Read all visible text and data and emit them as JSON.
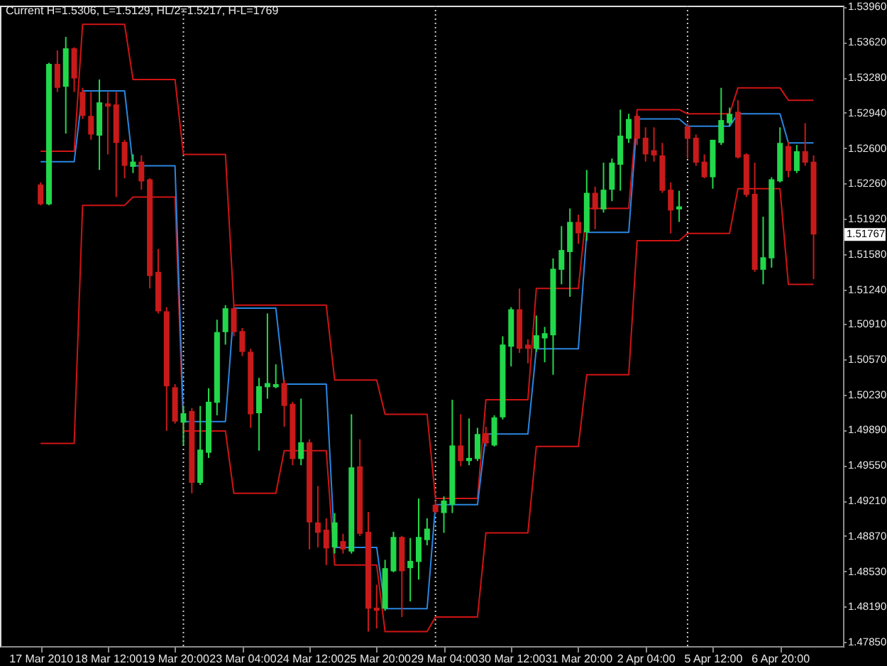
{
  "chart_data": {
    "type": "candlestick",
    "annotations": [
      "Current H=1.5306, L=1.5129, HL/2=1.5217, H-L=1769",
      "1.51767"
    ],
    "grid": "x",
    "categories": [
      "17 Mar 2010",
      null,
      null,
      null,
      null,
      null,
      null,
      null,
      "18 Mar 12:00",
      null,
      null,
      null,
      null,
      null,
      null,
      null,
      "19 Mar 20:00",
      null,
      null,
      null,
      null,
      null,
      null,
      null,
      "23 Mar 04:00",
      null,
      null,
      null,
      null,
      null,
      null,
      null,
      "24 Mar 12:00",
      null,
      null,
      null,
      null,
      null,
      null,
      null,
      "25 Mar 20:00",
      null,
      null,
      null,
      null,
      null,
      null,
      null,
      "29 Mar 04:00",
      null,
      null,
      null,
      null,
      null,
      null,
      null,
      "30 Mar 12:00",
      null,
      null,
      null,
      null,
      null,
      null,
      null,
      "31 Mar 20:00",
      null,
      null,
      null,
      null,
      null,
      null,
      null,
      "2 Apr 04:00",
      null,
      null,
      null,
      null,
      null,
      null,
      null,
      "5 Apr 12:00",
      null,
      null,
      null,
      null,
      null,
      null,
      null,
      "6 Apr 20:00",
      null,
      null,
      null,
      null
    ],
    "ylim": [
      1.4781,
      1.5397
    ],
    "yticks": [
      {
        "value": 1.5396,
        "label": "1.53960"
      },
      {
        "value": 1.5362,
        "label": "1.53620"
      },
      {
        "value": 1.5328,
        "label": "1.53280"
      },
      {
        "value": 1.5294,
        "label": "1.52940"
      },
      {
        "value": 1.526,
        "label": "1.52600"
      },
      {
        "value": 1.5226,
        "label": "1.52260"
      },
      {
        "value": 1.5192,
        "label": "1.51920"
      },
      {
        "value": 1.5158,
        "label": "1.51580"
      },
      {
        "value": 1.5124,
        "label": "1.51240"
      },
      {
        "value": 1.5091,
        "label": "1.50910"
      },
      {
        "value": 1.5057,
        "label": "1.50570"
      },
      {
        "value": 1.5023,
        "label": "1.50230"
      },
      {
        "value": 1.4989,
        "label": "1.49890"
      },
      {
        "value": 1.4955,
        "label": "1.49550"
      },
      {
        "value": 1.4921,
        "label": "1.49210"
      },
      {
        "value": 1.4887,
        "label": "1.48870"
      },
      {
        "value": 1.4853,
        "label": "1.48530"
      },
      {
        "value": 1.4819,
        "label": "1.48190"
      },
      {
        "value": 1.4785,
        "label": "1.47850"
      }
    ],
    "ohlc": [
      [
        1.5225,
        1.5227,
        1.5205,
        1.5206
      ],
      [
        1.5206,
        1.5342,
        1.5205,
        1.5341
      ],
      [
        1.5341,
        1.5354,
        1.5314,
        1.5318
      ],
      [
        1.5319,
        1.5367,
        1.5274,
        1.5356
      ],
      [
        1.5356,
        1.5357,
        1.5314,
        1.5327
      ],
      [
        1.5314,
        1.5318,
        1.5288,
        1.5291
      ],
      [
        1.5291,
        1.5314,
        1.5268,
        1.5273
      ],
      [
        1.5272,
        1.5326,
        1.5239,
        1.5304
      ],
      [
        1.5303,
        1.5314,
        1.5254,
        1.53
      ],
      [
        1.5302,
        1.5314,
        1.5213,
        1.5265
      ],
      [
        1.5266,
        1.5268,
        1.5231,
        1.5243
      ],
      [
        1.5242,
        1.5254,
        1.5236,
        1.5247
      ],
      [
        1.5247,
        1.5253,
        1.522,
        1.5228
      ],
      [
        1.523,
        1.5231,
        1.5125,
        1.5137
      ],
      [
        1.5141,
        1.5163,
        1.5101,
        1.5103
      ],
      [
        1.5103,
        1.5107,
        1.4988,
        1.5031
      ],
      [
        1.503,
        1.5033,
        1.4995,
        1.4997
      ],
      [
        1.4996,
        1.5012,
        1.4974,
        1.5005
      ],
      [
        1.5007,
        1.501,
        1.4928,
        1.4938
      ],
      [
        1.4938,
        1.5012,
        1.4936,
        1.497
      ],
      [
        1.4967,
        1.5029,
        1.4962,
        1.5016
      ],
      [
        1.5015,
        1.5095,
        1.5003,
        1.5083
      ],
      [
        1.5083,
        1.5109,
        1.5071,
        1.5106
      ],
      [
        1.5106,
        1.5109,
        1.5079,
        1.5083
      ],
      [
        1.5084,
        1.5087,
        1.506,
        1.5064
      ],
      [
        1.5064,
        1.5067,
        1.4991,
        1.5004
      ],
      [
        1.5005,
        1.5039,
        1.4969,
        1.5031
      ],
      [
        1.503,
        1.5101,
        1.5019,
        1.5034
      ],
      [
        1.503,
        1.5052,
        1.5029,
        1.5033
      ],
      [
        1.5034,
        1.5037,
        1.4992,
        1.5012
      ],
      [
        1.5014,
        1.5016,
        1.4955,
        1.4961
      ],
      [
        1.4961,
        1.5019,
        1.4955,
        1.4977
      ],
      [
        1.4977,
        1.498,
        1.4874,
        1.49
      ],
      [
        1.49,
        1.4935,
        1.4876,
        1.489
      ],
      [
        1.4893,
        1.4904,
        1.4859,
        1.4875
      ],
      [
        1.4876,
        1.4909,
        1.487,
        1.49
      ],
      [
        1.4882,
        1.4889,
        1.487,
        1.4874
      ],
      [
        1.4872,
        1.5004,
        1.487,
        1.4953
      ],
      [
        1.4954,
        1.498,
        1.4887,
        1.4889
      ],
      [
        1.4891,
        1.491,
        1.4795,
        1.4817
      ],
      [
        1.4818,
        1.484,
        1.4798,
        1.4815
      ],
      [
        1.4817,
        1.4864,
        1.4815,
        1.4856
      ],
      [
        1.4853,
        1.4891,
        1.4852,
        1.4886
      ],
      [
        1.4886,
        1.4887,
        1.4809,
        1.4853
      ],
      [
        1.4856,
        1.4885,
        1.4824,
        1.4863
      ],
      [
        1.4862,
        1.4923,
        1.4845,
        1.4886
      ],
      [
        1.4883,
        1.4904,
        1.4878,
        1.4894
      ],
      [
        1.4917,
        1.4921,
        1.4908,
        1.491
      ],
      [
        1.4909,
        1.4925,
        1.489,
        1.4921
      ],
      [
        1.4917,
        1.5018,
        1.4909,
        1.4974
      ],
      [
        1.4974,
        1.5004,
        1.4954,
        1.4959
      ],
      [
        1.4959,
        1.5,
        1.4955,
        1.4962
      ],
      [
        1.4961,
        1.4991,
        1.4959,
        1.4985
      ],
      [
        1.4986,
        1.4992,
        1.4973,
        1.4976
      ],
      [
        1.4974,
        1.5003,
        1.4973,
        1.5001
      ],
      [
        1.5001,
        1.5079,
        1.4999,
        1.5071
      ],
      [
        1.5069,
        1.5107,
        1.505,
        1.5105
      ],
      [
        1.5105,
        1.5125,
        1.5063,
        1.5067
      ],
      [
        1.5071,
        1.5076,
        1.5053,
        1.5067
      ],
      [
        1.5067,
        1.5099,
        1.5064,
        1.508
      ],
      [
        1.5077,
        1.5088,
        1.5054,
        1.5082
      ],
      [
        1.508,
        1.5154,
        1.5042,
        1.5144
      ],
      [
        1.5143,
        1.5185,
        1.5129,
        1.5162
      ],
      [
        1.516,
        1.5202,
        1.5117,
        1.5189
      ],
      [
        1.5189,
        1.5196,
        1.5168,
        1.5178
      ],
      [
        1.5179,
        1.5239,
        1.5171,
        1.5217
      ],
      [
        1.5217,
        1.5223,
        1.5182,
        1.5201
      ],
      [
        1.5201,
        1.5246,
        1.5198,
        1.522
      ],
      [
        1.522,
        1.525,
        1.5209,
        1.5246
      ],
      [
        1.5244,
        1.5297,
        1.5219,
        1.5272
      ],
      [
        1.5269,
        1.5293,
        1.5265,
        1.5288
      ],
      [
        1.5291,
        1.5293,
        1.5263,
        1.5269
      ],
      [
        1.527,
        1.528,
        1.5247,
        1.5254
      ],
      [
        1.5258,
        1.528,
        1.5247,
        1.5253
      ],
      [
        1.5253,
        1.5265,
        1.5217,
        1.5219
      ],
      [
        1.522,
        1.5227,
        1.5178,
        1.52
      ],
      [
        1.5201,
        1.5219,
        1.5189,
        1.5204
      ],
      [
        1.5281,
        1.5284,
        1.525,
        1.5269
      ],
      [
        1.527,
        1.5273,
        1.5243,
        1.5246
      ],
      [
        1.5247,
        1.5254,
        1.5231,
        1.5232
      ],
      [
        1.5232,
        1.5268,
        1.5221,
        1.5268
      ],
      [
        1.5265,
        1.5318,
        1.5263,
        1.5287
      ],
      [
        1.5284,
        1.5299,
        1.5281,
        1.5293
      ],
      [
        1.5295,
        1.5306,
        1.525,
        1.5251
      ],
      [
        1.5254,
        1.5255,
        1.5213,
        1.5215
      ],
      [
        1.5216,
        1.5246,
        1.5141,
        1.5143
      ],
      [
        1.5143,
        1.5194,
        1.5129,
        1.5155
      ],
      [
        1.5154,
        1.5232,
        1.5145,
        1.523
      ],
      [
        1.5228,
        1.528,
        1.5227,
        1.5265
      ],
      [
        1.5262,
        1.5266,
        1.5232,
        1.5238
      ],
      [
        1.5238,
        1.5263,
        1.5236,
        1.5257
      ],
      [
        1.5257,
        1.5284,
        1.5243,
        1.5246
      ],
      [
        1.5247,
        1.5253,
        1.5134,
        1.5177
      ]
    ],
    "colors": [
      "#c81a1a",
      "#22d84a",
      "#c81a1a",
      "#22d84a",
      "#c81a1a",
      "#c81a1a",
      "#c81a1a",
      "#22d84a",
      "#c81a1a",
      "#c81a1a",
      "#c81a1a",
      "#22d84a",
      "#c81a1a",
      "#c81a1a",
      "#c81a1a",
      "#c81a1a",
      "#c81a1a",
      "#22d84a",
      "#c81a1a",
      "#22d84a",
      "#22d84a",
      "#22d84a",
      "#22d84a",
      "#c81a1a",
      "#c81a1a",
      "#c81a1a",
      "#22d84a",
      "#22d84a",
      "#22d84a",
      "#c81a1a",
      "#c81a1a",
      "#22d84a",
      "#c81a1a",
      "#c81a1a",
      "#c81a1a",
      "#22d84a",
      "#c81a1a",
      "#22d84a",
      "#c81a1a",
      "#c81a1a",
      "#c81a1a",
      "#22d84a",
      "#22d84a",
      "#c81a1a",
      "#22d84a",
      "#22d84a",
      "#22d84a",
      "#c81a1a",
      "#22d84a",
      "#22d84a",
      "#c81a1a",
      "#22d84a",
      "#22d84a",
      "#c81a1a",
      "#22d84a",
      "#22d84a",
      "#22d84a",
      "#c81a1a",
      "#c81a1a",
      "#22d84a",
      "#22d84a",
      "#22d84a",
      "#22d84a",
      "#22d84a",
      "#c81a1a",
      "#22d84a",
      "#c81a1a",
      "#22d84a",
      "#22d84a",
      "#22d84a",
      "#22d84a",
      "#c81a1a",
      "#c81a1a",
      "#c81a1a",
      "#c81a1a",
      "#c81a1a",
      "#22d84a",
      "#c81a1a",
      "#c81a1a",
      "#c81a1a",
      "#22d84a",
      "#22d84a",
      "#22d84a",
      "#c81a1a",
      "#c81a1a",
      "#c81a1a",
      "#22d84a",
      "#22d84a",
      "#22d84a",
      "#c81a1a",
      "#22d84a",
      "#c81a1a",
      "#c81a1a"
    ],
    "series": [
      {
        "type": "line",
        "color": "#d01414",
        "values": [
          1.5257,
          1.5257,
          1.5257,
          1.5257,
          1.5257,
          1.5379,
          1.5379,
          1.5379,
          1.5379,
          1.5379,
          1.5379,
          1.5326,
          1.5326,
          1.5326,
          1.5326,
          1.5326,
          1.5326,
          1.5254,
          1.5254,
          1.5254,
          1.5254,
          1.5254,
          1.5254,
          1.5109,
          1.5109,
          1.5109,
          1.5109,
          1.5109,
          1.5109,
          1.5109,
          1.5109,
          1.5109,
          1.5109,
          1.5109,
          1.5109,
          1.5037,
          1.5037,
          1.5037,
          1.5037,
          1.5037,
          1.5037,
          1.5004,
          1.5004,
          1.5004,
          1.5004,
          1.5004,
          1.5004,
          1.4923,
          1.4923,
          1.4923,
          1.4923,
          1.4923,
          1.4923,
          1.5018,
          1.5018,
          1.5018,
          1.5018,
          1.5018,
          1.5018,
          1.5125,
          1.5125,
          1.5125,
          1.5125,
          1.5125,
          1.5125,
          1.5202,
          1.5202,
          1.5202,
          1.5202,
          1.5202,
          1.5202,
          1.5297,
          1.5297,
          1.5297,
          1.5297,
          1.5297,
          1.5297,
          1.5293,
          1.5293,
          1.5293,
          1.5293,
          1.5293,
          1.5293,
          1.5318,
          1.5318,
          1.5318,
          1.5318,
          1.5318,
          1.5318,
          1.5306,
          1.5306,
          1.5306,
          1.5306
        ]
      },
      {
        "type": "line",
        "color": "#d01414",
        "values": [
          1.4976,
          1.4976,
          1.4976,
          1.4976,
          1.4976,
          1.5205,
          1.5205,
          1.5205,
          1.5205,
          1.5205,
          1.5205,
          1.5213,
          1.5213,
          1.5213,
          1.5213,
          1.5213,
          1.5213,
          1.4988,
          1.4988,
          1.4988,
          1.4988,
          1.4988,
          1.4988,
          1.4928,
          1.4928,
          1.4928,
          1.4928,
          1.4928,
          1.4928,
          1.4969,
          1.4969,
          1.4969,
          1.4969,
          1.4969,
          1.4969,
          1.4859,
          1.4859,
          1.4859,
          1.4859,
          1.4859,
          1.4859,
          1.4795,
          1.4795,
          1.4795,
          1.4795,
          1.4795,
          1.4795,
          1.4809,
          1.4809,
          1.4809,
          1.4809,
          1.4809,
          1.4809,
          1.489,
          1.489,
          1.489,
          1.489,
          1.489,
          1.489,
          1.4973,
          1.4973,
          1.4973,
          1.4973,
          1.4973,
          1.4973,
          1.5042,
          1.5042,
          1.5042,
          1.5042,
          1.5042,
          1.5042,
          1.5171,
          1.5171,
          1.5171,
          1.5171,
          1.5171,
          1.5171,
          1.5178,
          1.5178,
          1.5178,
          1.5178,
          1.5178,
          1.5178,
          1.5221,
          1.5221,
          1.5221,
          1.5221,
          1.5221,
          1.5221,
          1.5129,
          1.5129,
          1.5129,
          1.5129
        ]
      },
      {
        "type": "line",
        "color": "#2a86e0",
        "values": [
          1.5247,
          1.5247,
          1.5247,
          1.5247,
          1.5247,
          1.5315,
          1.5315,
          1.5315,
          1.5315,
          1.5315,
          1.5315,
          1.5243,
          1.5243,
          1.5243,
          1.5243,
          1.5243,
          1.5243,
          1.4997,
          1.4997,
          1.4997,
          1.4997,
          1.4997,
          1.4997,
          1.5106,
          1.5106,
          1.5106,
          1.5106,
          1.5106,
          1.5106,
          1.5033,
          1.5033,
          1.5033,
          1.5033,
          1.5033,
          1.5033,
          1.4876,
          1.4876,
          1.4876,
          1.4876,
          1.4876,
          1.4876,
          1.4817,
          1.4817,
          1.4817,
          1.4817,
          1.4817,
          1.4817,
          1.4917,
          1.4917,
          1.4917,
          1.4917,
          1.4917,
          1.4917,
          1.4985,
          1.4985,
          1.4985,
          1.4985,
          1.4985,
          1.4985,
          1.5067,
          1.5067,
          1.5067,
          1.5067,
          1.5067,
          1.5067,
          1.5179,
          1.5179,
          1.5179,
          1.5179,
          1.5179,
          1.5179,
          1.5288,
          1.5288,
          1.5288,
          1.5288,
          1.5288,
          1.5288,
          1.5281,
          1.5281,
          1.5281,
          1.5281,
          1.5281,
          1.5281,
          1.5293,
          1.5293,
          1.5293,
          1.5293,
          1.5293,
          1.5293,
          1.5265,
          1.5265,
          1.5265,
          1.5265
        ]
      }
    ]
  }
}
